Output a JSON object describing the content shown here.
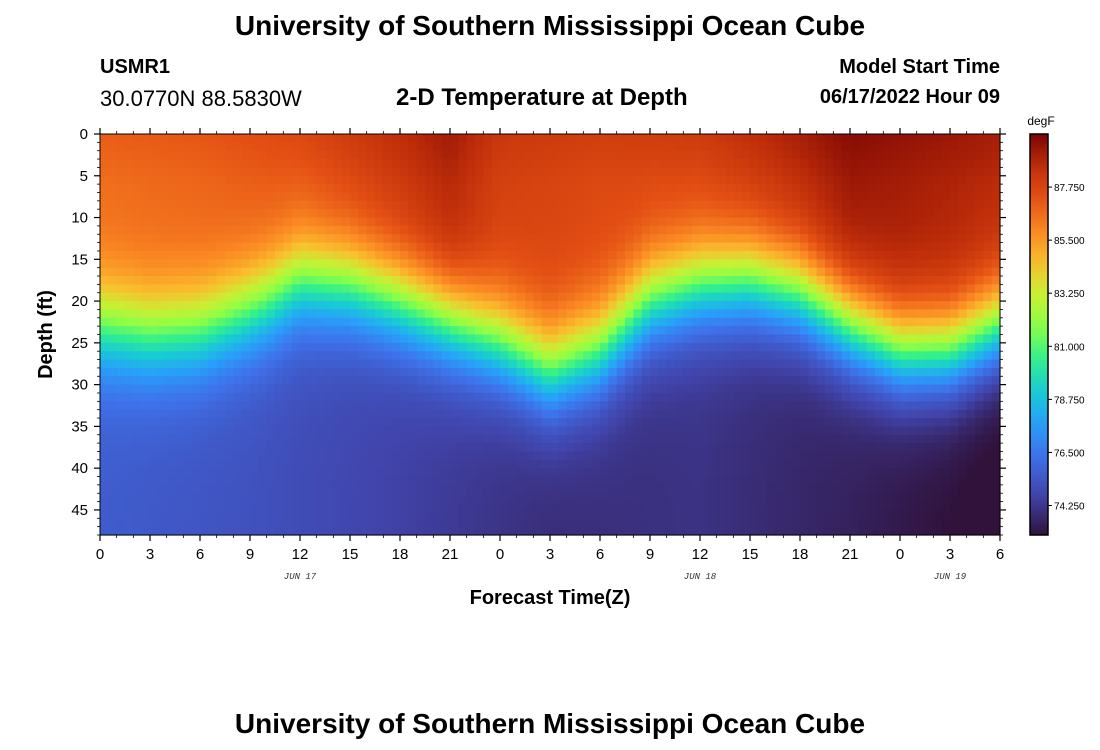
{
  "header": {
    "title": "University of Southern Mississippi Ocean Cube",
    "station": "USMR1",
    "coords": "30.0770N  88.5830W",
    "subtitle": "2-D Temperature at Depth",
    "model_start_label": "Model Start Time",
    "model_start_value": "06/17/2022 Hour 09"
  },
  "footer": {
    "title": "University of Southern Mississippi Ocean Cube"
  },
  "chart_data": {
    "type": "heatmap",
    "title": "2-D Temperature at Depth",
    "xlabel": "Forecast Time(Z)",
    "ylabel": "Depth (ft)",
    "x_tick_labels": [
      "0",
      "3",
      "6",
      "9",
      "12",
      "15",
      "18",
      "21",
      "0",
      "3",
      "6",
      "9",
      "12",
      "15",
      "18",
      "21",
      "0",
      "3",
      "6"
    ],
    "date_labels": [
      {
        "label": "JUN 17",
        "at_tick": 4
      },
      {
        "label": "JUN 18",
        "at_tick": 12
      },
      {
        "label": "JUN 19",
        "at_tick": 17
      }
    ],
    "y_tick_labels": [
      "0",
      "5",
      "10",
      "15",
      "20",
      "25",
      "30",
      "35",
      "40",
      "45"
    ],
    "ylim": [
      0,
      48
    ],
    "xlim_hours": [
      0,
      54
    ],
    "colorbar": {
      "unit": "degF",
      "ticks": [
        "87.750",
        "85.500",
        "83.250",
        "81.000",
        "78.750",
        "76.500",
        "74.250"
      ],
      "range": [
        73.0,
        90.0
      ]
    },
    "thermocline_depth_ft": [
      {
        "hour": 0,
        "depth": 19
      },
      {
        "hour": 3,
        "depth": 20
      },
      {
        "hour": 6,
        "depth": 19.5
      },
      {
        "hour": 9,
        "depth": 17
      },
      {
        "hour": 10,
        "depth": 16
      },
      {
        "hour": 12,
        "depth": 13.5
      },
      {
        "hour": 15,
        "depth": 14
      },
      {
        "hour": 18,
        "depth": 16
      },
      {
        "hour": 21,
        "depth": 18.5
      },
      {
        "hour": 24,
        "depth": 21
      },
      {
        "hour": 27,
        "depth": 24.5
      },
      {
        "hour": 30,
        "depth": 22
      },
      {
        "hour": 33,
        "depth": 16
      },
      {
        "hour": 36,
        "depth": 14
      },
      {
        "hour": 39,
        "depth": 13.5
      },
      {
        "hour": 42,
        "depth": 15
      },
      {
        "hour": 45,
        "depth": 19
      },
      {
        "hour": 48,
        "depth": 22
      },
      {
        "hour": 51,
        "depth": 22
      },
      {
        "hour": 54,
        "depth": 19
      }
    ],
    "surface_temp_degF": [
      {
        "hour": 0,
        "temp": 86.6
      },
      {
        "hour": 6,
        "temp": 86.8
      },
      {
        "hour": 12,
        "temp": 87.3
      },
      {
        "hour": 18,
        "temp": 88.3
      },
      {
        "hour": 21,
        "temp": 88.9
      },
      {
        "hour": 24,
        "temp": 87.9
      },
      {
        "hour": 30,
        "temp": 87.6
      },
      {
        "hour": 36,
        "temp": 87.8
      },
      {
        "hour": 42,
        "temp": 88.8
      },
      {
        "hour": 45,
        "temp": 89.4
      },
      {
        "hour": 48,
        "temp": 89.2
      },
      {
        "hour": 54,
        "temp": 88.8
      }
    ],
    "bottom_temp_degF": [
      {
        "hour": 0,
        "temp": 75.6
      },
      {
        "hour": 9,
        "temp": 75.2
      },
      {
        "hour": 18,
        "temp": 74.6
      },
      {
        "hour": 27,
        "temp": 73.9
      },
      {
        "hour": 36,
        "temp": 74.1
      },
      {
        "hour": 45,
        "temp": 73.5
      },
      {
        "hour": 54,
        "temp": 72.7
      }
    ]
  }
}
